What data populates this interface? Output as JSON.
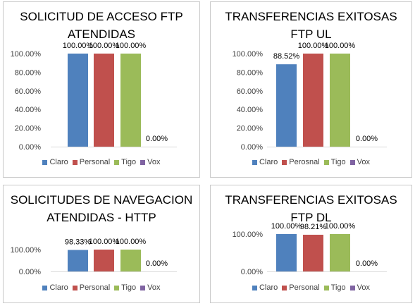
{
  "chart_data": [
    {
      "type": "bar",
      "title": "SOLICITUD DE ACCESO FTP ATENDIDAS",
      "categories": [
        "Claro",
        "Personal",
        "Tigo",
        "Vox"
      ],
      "values": [
        100.0,
        100.0,
        100.0,
        0.0
      ],
      "data_labels": [
        "100.00%",
        "100.00%",
        "100.00%",
        "0.00%"
      ],
      "y_ticks": [
        "0.00%",
        "20.00%",
        "40.00%",
        "60.00%",
        "80.00%",
        "100.00%"
      ],
      "ylim": [
        0,
        100
      ],
      "legend": [
        "Claro",
        "Personal",
        "Tigo",
        "Vox"
      ],
      "legend_position": "bottom",
      "grid": false
    },
    {
      "type": "bar",
      "title": "TRANSFERENCIAS EXITOSAS FTP UL",
      "categories": [
        "Claro",
        "Perosnal",
        "Tigo",
        "Vox"
      ],
      "values": [
        88.52,
        100.0,
        100.0,
        0.0
      ],
      "data_labels": [
        "88.52%",
        "100.00%",
        "100.00%",
        "0.00%"
      ],
      "y_ticks": [
        "0.00%",
        "20.00%",
        "40.00%",
        "60.00%",
        "80.00%",
        "100.00%"
      ],
      "ylim": [
        0,
        100
      ],
      "legend": [
        "Claro",
        "Perosnal",
        "Tigo",
        "Vox"
      ],
      "legend_position": "bottom",
      "grid": false
    },
    {
      "type": "bar",
      "title": "SOLICITUDES DE NAVEGACION ATENDIDAS - HTTP",
      "categories": [
        "Claro",
        "Personal",
        "Tigo",
        "Vox"
      ],
      "values": [
        98.33,
        100.0,
        100.0,
        0.0
      ],
      "data_labels": [
        "98.33%",
        "100.00%",
        "100.00%",
        "0.00%"
      ],
      "y_ticks": [
        "0.00%",
        "100.00%"
      ],
      "ylim": [
        0,
        100
      ],
      "legend": [
        "Claro",
        "Personal",
        "Tigo",
        "Vox"
      ],
      "legend_position": "bottom",
      "grid": false
    },
    {
      "type": "bar",
      "title": "TRANSFERENCIAS EXITOSAS FTP DL",
      "categories": [
        "Claro",
        "Personal",
        "Tigo",
        "Vox"
      ],
      "values": [
        100.0,
        98.21,
        100.0,
        0.0
      ],
      "data_labels": [
        "100.00%",
        "98.21%",
        "100.00%",
        "0.00%"
      ],
      "y_ticks": [
        "0.00%",
        "100.00%"
      ],
      "ylim": [
        0,
        100
      ],
      "legend": [
        "Claro",
        "Personal",
        "Tigo",
        "Vox"
      ],
      "legend_position": "bottom",
      "grid": false
    }
  ],
  "colors": {
    "Claro": "#4F81BD",
    "Personal": "#C0504D",
    "Tigo": "#9BBB59",
    "Vox": "#8064A2"
  }
}
